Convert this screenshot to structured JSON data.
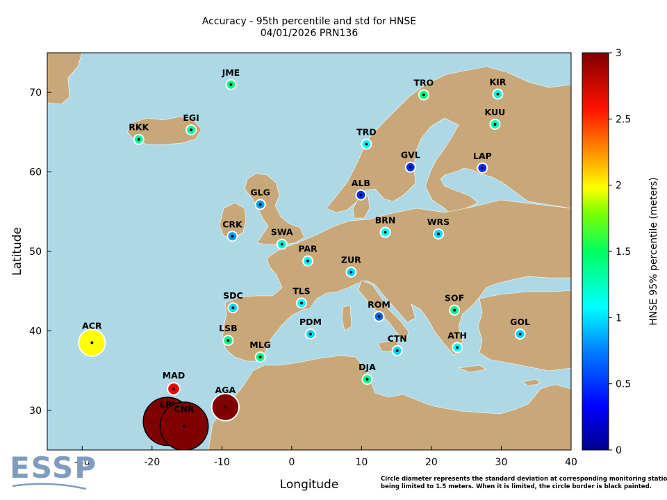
{
  "header": {
    "title_line1": "Accuracy - 95th percentile and std for HNSE",
    "title_line2": "04/01/2026 PRN136"
  },
  "logo": {
    "text": "ESSP"
  },
  "footnote": {
    "line1": "Circle diameter represents the standard deviation at corresponding monitoring station,",
    "line2": "being limited to 1.5 meters. When it is limited, the circle border is black painted."
  },
  "colors": {
    "sea": "#add8e6",
    "land": "#c8a878",
    "border": "#ffffff",
    "colorscale": [
      "#00008f",
      "#0000ff",
      "#0080ff",
      "#00ffff",
      "#00ff80",
      "#80ff00",
      "#ffff00",
      "#ff8000",
      "#ff0000",
      "#800000"
    ]
  },
  "chart_data": {
    "type": "scatter",
    "map": "Europe and North Africa",
    "xlabel": "Longitude",
    "ylabel": "Latitude",
    "xlim": [
      -35,
      40
    ],
    "ylim": [
      25,
      75
    ],
    "xticks": [
      -30,
      -20,
      -10,
      0,
      10,
      20,
      30,
      40
    ],
    "yticks": [
      30,
      40,
      50,
      60,
      70
    ],
    "colorbar": {
      "label": "HNSE 95% percentile (meters)",
      "range": [
        0,
        3
      ],
      "ticks": [
        0,
        0.5,
        1,
        1.5,
        2,
        2.5,
        3
      ]
    },
    "series": [
      {
        "stations": [
          {
            "name": "JME",
            "lon": -8.7,
            "lat": 71.0,
            "hnse95": 1.3,
            "std": 0.12
          },
          {
            "name": "TRO",
            "lon": 18.9,
            "lat": 69.7,
            "hnse95": 1.35,
            "std": 0.18
          },
          {
            "name": "KIR",
            "lon": 29.5,
            "lat": 69.8,
            "hnse95": 1.1,
            "std": 0.13
          },
          {
            "name": "KUU",
            "lon": 29.1,
            "lat": 66.0,
            "hnse95": 1.2,
            "std": 0.13
          },
          {
            "name": "RKK",
            "lon": -21.9,
            "lat": 64.1,
            "hnse95": 1.25,
            "std": 0.14
          },
          {
            "name": "EGI",
            "lon": -14.4,
            "lat": 65.3,
            "hnse95": 1.25,
            "std": 0.13
          },
          {
            "name": "TRD",
            "lon": 10.7,
            "lat": 63.5,
            "hnse95": 1.0,
            "std": 0.12
          },
          {
            "name": "GVL",
            "lon": 17.0,
            "lat": 60.6,
            "hnse95": 0.45,
            "std": 0.08
          },
          {
            "name": "LAP",
            "lon": 27.3,
            "lat": 60.5,
            "hnse95": 0.45,
            "std": 0.08
          },
          {
            "name": "ALB",
            "lon": 9.9,
            "lat": 57.1,
            "hnse95": 0.45,
            "std": 0.06
          },
          {
            "name": "GLG",
            "lon": -4.5,
            "lat": 55.9,
            "hnse95": 0.75,
            "std": 0.08
          },
          {
            "name": "CRK",
            "lon": -8.5,
            "lat": 51.9,
            "hnse95": 0.75,
            "std": 0.08
          },
          {
            "name": "SWA",
            "lon": -1.4,
            "lat": 50.9,
            "hnse95": 1.1,
            "std": 0.1
          },
          {
            "name": "BRN",
            "lon": 13.4,
            "lat": 52.4,
            "hnse95": 1.0,
            "std": 0.1
          },
          {
            "name": "WRS",
            "lon": 21.0,
            "lat": 52.2,
            "hnse95": 0.9,
            "std": 0.1
          },
          {
            "name": "PAR",
            "lon": 2.3,
            "lat": 48.8,
            "hnse95": 1.0,
            "std": 0.11
          },
          {
            "name": "ZUR",
            "lon": 8.5,
            "lat": 47.4,
            "hnse95": 0.9,
            "std": 0.09
          },
          {
            "name": "TLS",
            "lon": 1.4,
            "lat": 43.5,
            "hnse95": 1.0,
            "std": 0.1
          },
          {
            "name": "SDC",
            "lon": -8.4,
            "lat": 42.9,
            "hnse95": 0.9,
            "std": 0.1
          },
          {
            "name": "ROM",
            "lon": 12.5,
            "lat": 41.8,
            "hnse95": 0.6,
            "std": 0.07
          },
          {
            "name": "SOF",
            "lon": 23.3,
            "lat": 42.6,
            "hnse95": 1.3,
            "std": 0.12
          },
          {
            "name": "GOL",
            "lon": 32.7,
            "lat": 39.6,
            "hnse95": 0.9,
            "std": 0.1
          },
          {
            "name": "PDM",
            "lon": 2.7,
            "lat": 39.6,
            "hnse95": 0.9,
            "std": 0.09
          },
          {
            "name": "LSB",
            "lon": -9.1,
            "lat": 38.8,
            "hnse95": 1.3,
            "std": 0.13
          },
          {
            "name": "ATH",
            "lon": 23.7,
            "lat": 37.9,
            "hnse95": 1.0,
            "std": 0.1
          },
          {
            "name": "CTN",
            "lon": 15.1,
            "lat": 37.5,
            "hnse95": 0.9,
            "std": 0.09
          },
          {
            "name": "MLG",
            "lon": -4.5,
            "lat": 36.7,
            "hnse95": 1.35,
            "std": 0.13
          },
          {
            "name": "DJA",
            "lon": 10.8,
            "lat": 33.9,
            "hnse95": 1.3,
            "std": 0.12
          },
          {
            "name": "ACR",
            "lon": -28.6,
            "lat": 38.5,
            "hnse95": 2.0,
            "std": 0.83
          },
          {
            "name": "MAD",
            "lon": -16.9,
            "lat": 32.7,
            "hnse95": 2.7,
            "std": 0.38
          },
          {
            "name": "AGA",
            "lon": -9.5,
            "lat": 30.4,
            "hnse95": 3.0,
            "std": 0.85
          },
          {
            "name": "LPI",
            "lon": -17.8,
            "lat": 28.6,
            "hnse95": 3.0,
            "std": 1.5
          },
          {
            "name": "CNR",
            "lon": -15.4,
            "lat": 28.0,
            "hnse95": 3.0,
            "std": 1.5
          }
        ]
      }
    ]
  }
}
